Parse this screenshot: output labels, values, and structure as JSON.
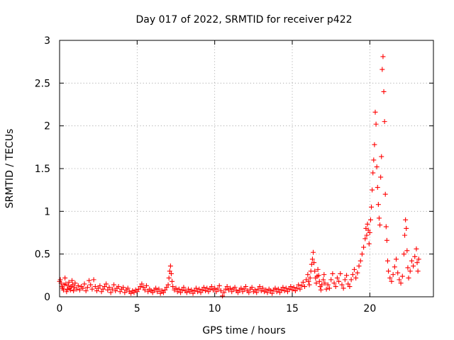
{
  "chart_data": {
    "type": "scatter",
    "title": "Day 017 of 2022, SRMTID for receiver p422",
    "xlabel": "GPS time / hours",
    "ylabel": "SRMTID / TECUs",
    "xlim": [
      0,
      24.1
    ],
    "ylim": [
      0,
      3
    ],
    "xticks": [
      0,
      5,
      10,
      15,
      20
    ],
    "xtick_labels": [
      "0",
      "5",
      "10",
      "15",
      "20"
    ],
    "yticks": [
      0,
      0.5,
      1,
      1.5,
      2,
      2.5,
      3
    ],
    "ytick_labels": [
      "0",
      "0.5",
      "1",
      "1.5",
      "2",
      "2.5",
      "3"
    ],
    "grid": true,
    "marker": "+",
    "series": [
      {
        "name": "p422",
        "color": "#ff0000",
        "points": [
          [
            0.0,
            0.18
          ],
          [
            0.05,
            0.2
          ],
          [
            0.1,
            0.16
          ],
          [
            0.15,
            0.12
          ],
          [
            0.2,
            0.1
          ],
          [
            0.25,
            0.08
          ],
          [
            0.3,
            0.14
          ],
          [
            0.35,
            0.22
          ],
          [
            0.4,
            0.15
          ],
          [
            0.45,
            0.06
          ],
          [
            0.5,
            0.09
          ],
          [
            0.55,
            0.13
          ],
          [
            0.6,
            0.17
          ],
          [
            0.65,
            0.1
          ],
          [
            0.7,
            0.08
          ],
          [
            0.75,
            0.12
          ],
          [
            0.8,
            0.19
          ],
          [
            0.85,
            0.14
          ],
          [
            0.9,
            0.07
          ],
          [
            0.95,
            0.11
          ],
          [
            1.0,
            0.16
          ],
          [
            1.1,
            0.09
          ],
          [
            1.2,
            0.13
          ],
          [
            1.3,
            0.08
          ],
          [
            1.4,
            0.12
          ],
          [
            1.5,
            0.1
          ],
          [
            1.6,
            0.15
          ],
          [
            1.7,
            0.07
          ],
          [
            1.8,
            0.11
          ],
          [
            1.9,
            0.19
          ],
          [
            2.0,
            0.14
          ],
          [
            2.1,
            0.09
          ],
          [
            2.2,
            0.2
          ],
          [
            2.3,
            0.12
          ],
          [
            2.4,
            0.07
          ],
          [
            2.5,
            0.1
          ],
          [
            2.6,
            0.13
          ],
          [
            2.7,
            0.06
          ],
          [
            2.8,
            0.09
          ],
          [
            2.9,
            0.12
          ],
          [
            3.0,
            0.15
          ],
          [
            3.1,
            0.08
          ],
          [
            3.2,
            0.11
          ],
          [
            3.3,
            0.05
          ],
          [
            3.4,
            0.09
          ],
          [
            3.5,
            0.14
          ],
          [
            3.6,
            0.07
          ],
          [
            3.7,
            0.1
          ],
          [
            3.8,
            0.12
          ],
          [
            3.9,
            0.06
          ],
          [
            4.0,
            0.09
          ],
          [
            4.1,
            0.11
          ],
          [
            4.2,
            0.05
          ],
          [
            4.3,
            0.08
          ],
          [
            4.4,
            0.1
          ],
          [
            4.5,
            0.06
          ],
          [
            4.6,
            0.04
          ],
          [
            4.7,
            0.07
          ],
          [
            4.8,
            0.05
          ],
          [
            4.9,
            0.08
          ],
          [
            5.0,
            0.06
          ],
          [
            5.1,
            0.09
          ],
          [
            5.2,
            0.12
          ],
          [
            5.3,
            0.15
          ],
          [
            5.4,
            0.11
          ],
          [
            5.5,
            0.08
          ],
          [
            5.6,
            0.13
          ],
          [
            5.7,
            0.06
          ],
          [
            5.8,
            0.09
          ],
          [
            5.9,
            0.07
          ],
          [
            6.0,
            0.05
          ],
          [
            6.1,
            0.08
          ],
          [
            6.2,
            0.1
          ],
          [
            6.3,
            0.06
          ],
          [
            6.4,
            0.09
          ],
          [
            6.5,
            0.04
          ],
          [
            6.6,
            0.07
          ],
          [
            6.7,
            0.05
          ],
          [
            6.8,
            0.08
          ],
          [
            6.9,
            0.11
          ],
          [
            7.0,
            0.14
          ],
          [
            7.05,
            0.22
          ],
          [
            7.1,
            0.3
          ],
          [
            7.15,
            0.36
          ],
          [
            7.2,
            0.27
          ],
          [
            7.25,
            0.18
          ],
          [
            7.3,
            0.12
          ],
          [
            7.4,
            0.08
          ],
          [
            7.5,
            0.1
          ],
          [
            7.6,
            0.06
          ],
          [
            7.7,
            0.09
          ],
          [
            7.8,
            0.05
          ],
          [
            7.9,
            0.08
          ],
          [
            8.0,
            0.11
          ],
          [
            8.1,
            0.07
          ],
          [
            8.2,
            0.05
          ],
          [
            8.3,
            0.09
          ],
          [
            8.4,
            0.06
          ],
          [
            8.5,
            0.08
          ],
          [
            8.6,
            0.04
          ],
          [
            8.7,
            0.07
          ],
          [
            8.8,
            0.1
          ],
          [
            8.9,
            0.06
          ],
          [
            9.0,
            0.09
          ],
          [
            9.1,
            0.05
          ],
          [
            9.2,
            0.08
          ],
          [
            9.3,
            0.11
          ],
          [
            9.4,
            0.07
          ],
          [
            9.5,
            0.1
          ],
          [
            9.6,
            0.06
          ],
          [
            9.7,
            0.09
          ],
          [
            9.8,
            0.12
          ],
          [
            9.9,
            0.08
          ],
          [
            10.0,
            0.1
          ],
          [
            10.1,
            0.06
          ],
          [
            10.2,
            0.09
          ],
          [
            10.3,
            0.13
          ],
          [
            10.4,
            0.07
          ],
          [
            10.5,
            0.01
          ],
          [
            10.6,
            0.05
          ],
          [
            10.7,
            0.09
          ],
          [
            10.8,
            0.12
          ],
          [
            10.9,
            0.08
          ],
          [
            11.0,
            0.1
          ],
          [
            11.1,
            0.06
          ],
          [
            11.2,
            0.09
          ],
          [
            11.3,
            0.11
          ],
          [
            11.4,
            0.07
          ],
          [
            11.5,
            0.05
          ],
          [
            11.6,
            0.08
          ],
          [
            11.7,
            0.1
          ],
          [
            11.8,
            0.06
          ],
          [
            11.9,
            0.09
          ],
          [
            12.0,
            0.12
          ],
          [
            12.1,
            0.07
          ],
          [
            12.2,
            0.05
          ],
          [
            12.3,
            0.09
          ],
          [
            12.4,
            0.11
          ],
          [
            12.5,
            0.06
          ],
          [
            12.6,
            0.08
          ],
          [
            12.7,
            0.05
          ],
          [
            12.8,
            0.09
          ],
          [
            12.9,
            0.12
          ],
          [
            13.0,
            0.07
          ],
          [
            13.1,
            0.1
          ],
          [
            13.2,
            0.06
          ],
          [
            13.3,
            0.08
          ],
          [
            13.4,
            0.05
          ],
          [
            13.5,
            0.09
          ],
          [
            13.6,
            0.07
          ],
          [
            13.7,
            0.04
          ],
          [
            13.8,
            0.08
          ],
          [
            13.9,
            0.1
          ],
          [
            14.0,
            0.06
          ],
          [
            14.1,
            0.09
          ],
          [
            14.2,
            0.05
          ],
          [
            14.3,
            0.08
          ],
          [
            14.4,
            0.11
          ],
          [
            14.5,
            0.07
          ],
          [
            14.6,
            0.1
          ],
          [
            14.7,
            0.06
          ],
          [
            14.8,
            0.09
          ],
          [
            14.9,
            0.12
          ],
          [
            15.0,
            0.08
          ],
          [
            15.1,
            0.11
          ],
          [
            15.2,
            0.07
          ],
          [
            15.3,
            0.1
          ],
          [
            15.4,
            0.14
          ],
          [
            15.5,
            0.09
          ],
          [
            15.6,
            0.13
          ],
          [
            15.7,
            0.17
          ],
          [
            15.8,
            0.12
          ],
          [
            15.9,
            0.2
          ],
          [
            16.0,
            0.26
          ],
          [
            16.05,
            0.18
          ],
          [
            16.1,
            0.14
          ],
          [
            16.15,
            0.22
          ],
          [
            16.2,
            0.3
          ],
          [
            16.25,
            0.38
          ],
          [
            16.3,
            0.44
          ],
          [
            16.35,
            0.52
          ],
          [
            16.4,
            0.4
          ],
          [
            16.45,
            0.3
          ],
          [
            16.5,
            0.22
          ],
          [
            16.55,
            0.16
          ],
          [
            16.6,
            0.24
          ],
          [
            16.65,
            0.32
          ],
          [
            16.7,
            0.25
          ],
          [
            16.75,
            0.18
          ],
          [
            16.8,
            0.12
          ],
          [
            16.85,
            0.08
          ],
          [
            16.9,
            0.14
          ],
          [
            17.0,
            0.2
          ],
          [
            17.05,
            0.26
          ],
          [
            17.1,
            0.16
          ],
          [
            17.2,
            0.09
          ],
          [
            17.3,
            0.14
          ],
          [
            17.4,
            0.1
          ],
          [
            17.5,
            0.2
          ],
          [
            17.6,
            0.27
          ],
          [
            17.7,
            0.16
          ],
          [
            17.8,
            0.12
          ],
          [
            17.9,
            0.22
          ],
          [
            18.0,
            0.18
          ],
          [
            18.1,
            0.27
          ],
          [
            18.2,
            0.14
          ],
          [
            18.3,
            0.1
          ],
          [
            18.4,
            0.2
          ],
          [
            18.5,
            0.25
          ],
          [
            18.6,
            0.15
          ],
          [
            18.7,
            0.12
          ],
          [
            18.8,
            0.2
          ],
          [
            18.9,
            0.26
          ],
          [
            19.0,
            0.32
          ],
          [
            19.1,
            0.22
          ],
          [
            19.2,
            0.28
          ],
          [
            19.3,
            0.36
          ],
          [
            19.4,
            0.42
          ],
          [
            19.5,
            0.5
          ],
          [
            19.6,
            0.58
          ],
          [
            19.7,
            0.68
          ],
          [
            19.75,
            0.8
          ],
          [
            19.8,
            0.72
          ],
          [
            19.85,
            0.85
          ],
          [
            19.9,
            0.78
          ],
          [
            19.95,
            0.62
          ],
          [
            20.0,
            0.75
          ],
          [
            20.05,
            0.9
          ],
          [
            20.1,
            1.05
          ],
          [
            20.15,
            1.25
          ],
          [
            20.2,
            1.45
          ],
          [
            20.25,
            1.6
          ],
          [
            20.3,
            1.78
          ],
          [
            20.35,
            2.16
          ],
          [
            20.4,
            2.02
          ],
          [
            20.45,
            1.52
          ],
          [
            20.5,
            1.28
          ],
          [
            20.55,
            1.08
          ],
          [
            20.6,
            0.92
          ],
          [
            20.65,
            0.84
          ],
          [
            20.7,
            1.4
          ],
          [
            20.75,
            1.64
          ],
          [
            20.8,
            2.66
          ],
          [
            20.85,
            2.81
          ],
          [
            20.9,
            2.4
          ],
          [
            20.95,
            2.05
          ],
          [
            21.0,
            1.2
          ],
          [
            21.05,
            0.82
          ],
          [
            21.1,
            0.66
          ],
          [
            21.15,
            0.42
          ],
          [
            21.2,
            0.3
          ],
          [
            21.3,
            0.22
          ],
          [
            21.4,
            0.18
          ],
          [
            21.5,
            0.26
          ],
          [
            21.6,
            0.35
          ],
          [
            21.7,
            0.44
          ],
          [
            21.8,
            0.28
          ],
          [
            21.9,
            0.2
          ],
          [
            22.0,
            0.16
          ],
          [
            22.1,
            0.24
          ],
          [
            22.2,
            0.5
          ],
          [
            22.25,
            0.72
          ],
          [
            22.3,
            0.9
          ],
          [
            22.35,
            0.8
          ],
          [
            22.4,
            0.54
          ],
          [
            22.45,
            0.34
          ],
          [
            22.5,
            0.22
          ],
          [
            22.6,
            0.3
          ],
          [
            22.7,
            0.42
          ],
          [
            22.8,
            0.36
          ],
          [
            22.9,
            0.47
          ],
          [
            23.0,
            0.56
          ],
          [
            23.05,
            0.4
          ],
          [
            23.1,
            0.3
          ],
          [
            23.15,
            0.44
          ]
        ]
      }
    ]
  }
}
